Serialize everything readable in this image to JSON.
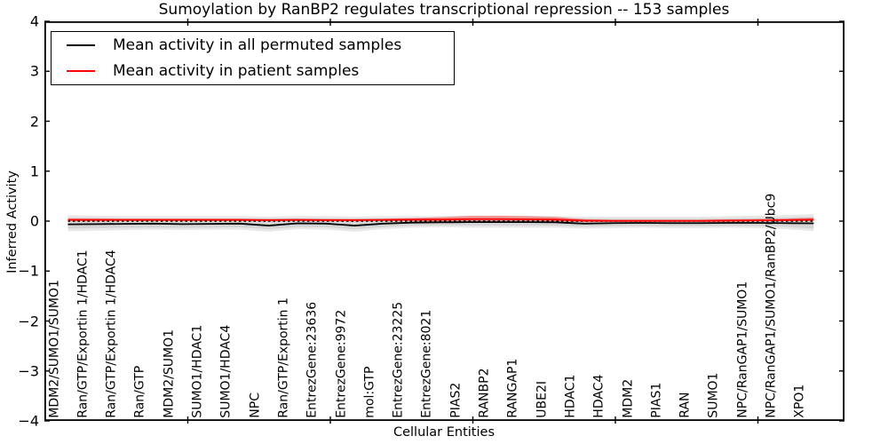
{
  "title": "Sumoylation by RanBP2 regulates transcriptional repression -- 153 samples",
  "legend": {
    "items": [
      {
        "label": "Mean activity in all permuted samples",
        "color": "#000000"
      },
      {
        "label": "Mean activity in patient samples",
        "color": "#ff0000"
      }
    ]
  },
  "axes": {
    "ylabel": "Inferred Activity",
    "xlabel": "Cellular Entities",
    "y_ticks": [
      "4",
      "3",
      "2",
      "1",
      "0",
      "−1",
      "−2",
      "−3",
      "−4"
    ],
    "ylim": [
      -4,
      4
    ]
  },
  "chart_data": {
    "type": "line",
    "title": "Sumoylation by RanBP2 regulates transcriptional repression -- 153 samples",
    "xlabel": "Cellular Entities",
    "ylabel": "Inferred Activity",
    "ylim": [
      -4,
      4
    ],
    "grid": false,
    "legend_position": "upper left",
    "baseline": 0,
    "baseline_style": "dotted",
    "categories": [
      "MDM2/SUMO1/SUMO1",
      "Ran/GTP/Exportin 1/HDAC1",
      "Ran/GTP/Exportin 1/HDAC4",
      "Ran/GTP",
      "MDM2/SUMO1",
      "SUMO1/HDAC1",
      "SUMO1/HDAC4",
      "NPC",
      "Ran/GTP/Exportin 1",
      "EntrezGene:23636",
      "EntrezGene:9972",
      "mol:GTP",
      "EntrezGene:23225",
      "EntrezGene:8021",
      "PIAS2",
      "RANBP2",
      "RANGAP1",
      "UBE2I",
      "HDAC1",
      "HDAC4",
      "MDM2",
      "PIAS1",
      "RAN",
      "SUMO1",
      "NPC/RanGAP1/SUMO1",
      "NPC/RanGAP1/SUMO1/RanBP2/Ubc9",
      "XPO1"
    ],
    "series": [
      {
        "name": "Mean activity in all permuted samples",
        "color": "#000000",
        "width": 1.8,
        "values": [
          -0.065,
          -0.06,
          -0.055,
          -0.05,
          -0.06,
          -0.055,
          -0.05,
          -0.09,
          -0.045,
          -0.05,
          -0.09,
          -0.05,
          -0.03,
          -0.025,
          -0.02,
          -0.02,
          -0.02,
          -0.025,
          -0.05,
          -0.04,
          -0.035,
          -0.04,
          -0.04,
          -0.035,
          -0.035,
          -0.04,
          -0.045
        ]
      },
      {
        "name": "Mean activity in patient samples",
        "color": "#ff0000",
        "width": 1.8,
        "values": [
          0.025,
          0.025,
          0.025,
          0.025,
          0.025,
          0.025,
          0.025,
          0.02,
          0.025,
          0.02,
          0.02,
          0.025,
          0.03,
          0.03,
          0.04,
          0.04,
          0.035,
          0.03,
          0.01,
          0.005,
          0.005,
          0.005,
          0.005,
          0.01,
          0.015,
          0.02,
          0.03
        ]
      }
    ],
    "bands": [
      {
        "name": "permuted-band-outer",
        "color": "rgba(128,128,128,0.18)",
        "upper": [
          0.12,
          0.11,
          0.1,
          0.1,
          0.1,
          0.1,
          0.1,
          0.09,
          0.1,
          0.1,
          0.09,
          0.1,
          0.1,
          0.1,
          0.11,
          0.11,
          0.11,
          0.1,
          0.09,
          0.09,
          0.09,
          0.09,
          0.09,
          0.1,
          0.11,
          0.12,
          0.14
        ],
        "lower": [
          -0.2,
          -0.19,
          -0.18,
          -0.17,
          -0.18,
          -0.17,
          -0.17,
          -0.21,
          -0.16,
          -0.17,
          -0.21,
          -0.16,
          -0.13,
          -0.12,
          -0.13,
          -0.13,
          -0.13,
          -0.13,
          -0.15,
          -0.14,
          -0.13,
          -0.14,
          -0.14,
          -0.13,
          -0.14,
          -0.16,
          -0.2
        ]
      },
      {
        "name": "permuted-band-inner",
        "color": "rgba(128,128,128,0.18)",
        "upper": [
          0.065,
          0.06,
          0.055,
          0.055,
          0.055,
          0.055,
          0.055,
          0.05,
          0.055,
          0.055,
          0.05,
          0.055,
          0.06,
          0.06,
          0.065,
          0.065,
          0.065,
          0.06,
          0.05,
          0.05,
          0.05,
          0.05,
          0.05,
          0.055,
          0.06,
          0.07,
          0.085
        ],
        "lower": [
          -0.15,
          -0.14,
          -0.135,
          -0.13,
          -0.135,
          -0.13,
          -0.125,
          -0.16,
          -0.12,
          -0.125,
          -0.16,
          -0.12,
          -0.09,
          -0.085,
          -0.09,
          -0.09,
          -0.09,
          -0.09,
          -0.11,
          -0.1,
          -0.095,
          -0.1,
          -0.1,
          -0.095,
          -0.1,
          -0.115,
          -0.15
        ]
      },
      {
        "name": "patient-band",
        "color": "rgba(255,0,0,0.35)",
        "upper": [
          0.055,
          0.055,
          0.05,
          0.05,
          0.05,
          0.05,
          0.05,
          0.045,
          0.05,
          0.045,
          0.045,
          0.05,
          0.06,
          0.08,
          0.105,
          0.11,
          0.1,
          0.085,
          0.04,
          0.03,
          0.03,
          0.03,
          0.03,
          0.035,
          0.04,
          0.05,
          0.065
        ],
        "lower": [
          -0.005,
          -0.005,
          0,
          0,
          0,
          0,
          0,
          -0.005,
          0,
          -0.005,
          -0.005,
          0,
          -0.005,
          -0.02,
          -0.03,
          -0.035,
          -0.03,
          -0.025,
          -0.015,
          -0.015,
          -0.015,
          -0.015,
          -0.015,
          -0.01,
          -0.01,
          -0.005,
          0
        ]
      }
    ]
  },
  "colors": {
    "spine": "#000000",
    "permuted_line": "#000000",
    "patient_line": "#ff0000",
    "permuted_band": "rgba(128,128,128,0.18)",
    "patient_band": "rgba(255,0,0,0.35)"
  }
}
